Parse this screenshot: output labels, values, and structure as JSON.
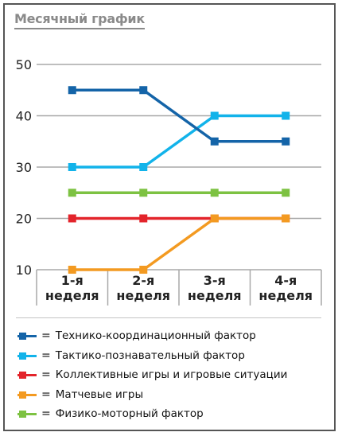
{
  "chart_data": {
    "type": "line",
    "title": "Месячный график",
    "categories": [
      [
        "1-я",
        "неделя"
      ],
      [
        "2-я",
        "неделя"
      ],
      [
        "3-я",
        "неделя"
      ],
      [
        "4-я",
        "неделя"
      ]
    ],
    "ylim": [
      10,
      50
    ],
    "yticks": [
      10,
      20,
      30,
      40,
      50
    ],
    "grid": true,
    "legend_position": "bottom",
    "series": [
      {
        "name": "Технико-координационный фактор",
        "color": "#1464a8",
        "values": [
          45,
          45,
          35,
          35
        ]
      },
      {
        "name": "Тактико-познавательный фактор",
        "color": "#12b3ea",
        "values": [
          30,
          30,
          40,
          40
        ]
      },
      {
        "name": "Коллективные игры и игровые ситуации",
        "color": "#e3242b",
        "values": [
          20,
          20,
          20,
          20
        ]
      },
      {
        "name": "Матчевые игры",
        "color": "#f39a21",
        "values": [
          10,
          10,
          20,
          20
        ]
      },
      {
        "name": "Физико-моторный фактор",
        "color": "#7dc242",
        "values": [
          25,
          25,
          25,
          25
        ]
      }
    ]
  },
  "legend": {
    "equals_sign": "="
  }
}
